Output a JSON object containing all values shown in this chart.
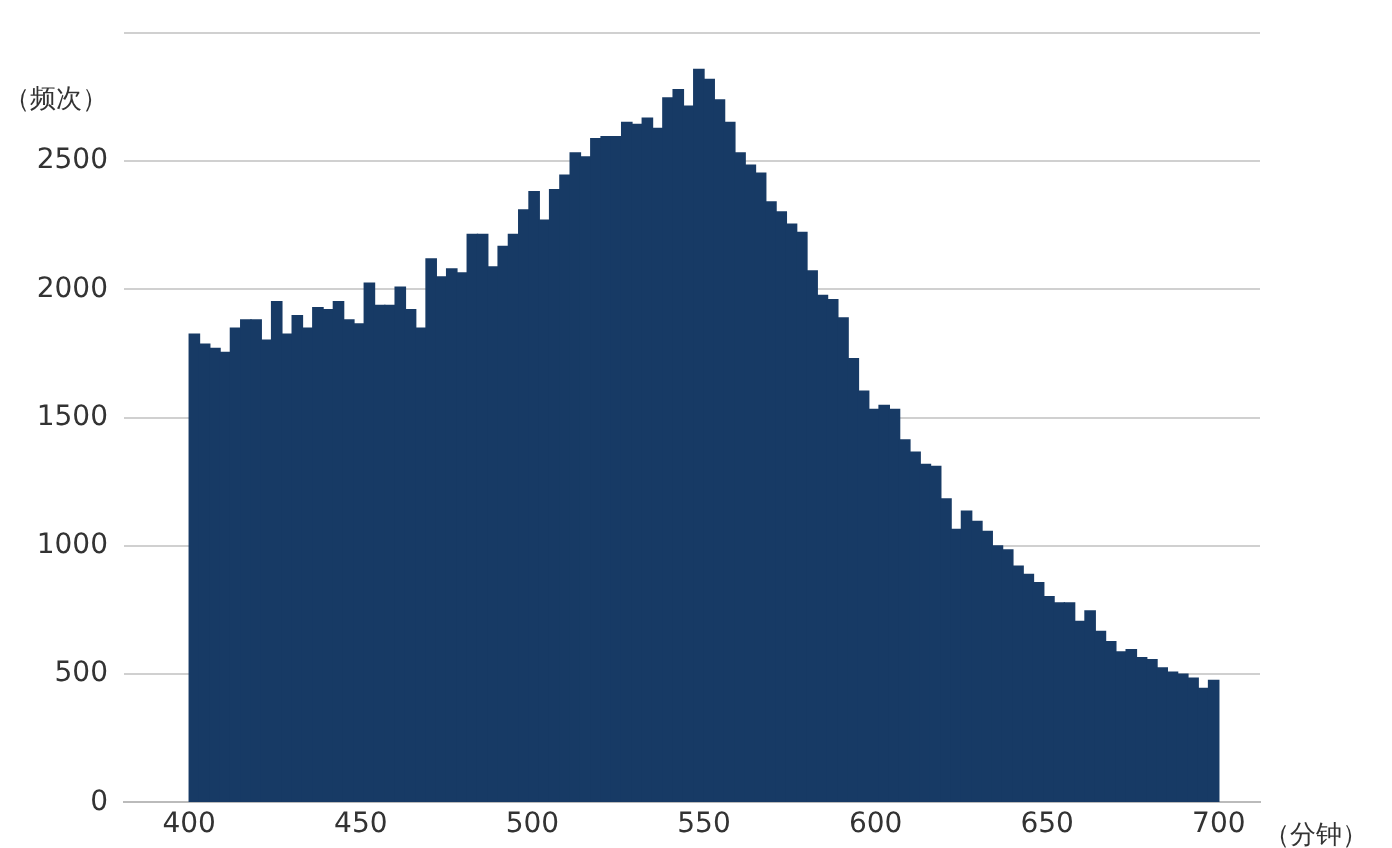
{
  "chart_data": {
    "type": "histogram",
    "ylabel": "（频次）",
    "xlabel": "（分钟）",
    "color": "#173a65",
    "bins": [
      400,
      403,
      406,
      409,
      412,
      415,
      418,
      421,
      424,
      427,
      430,
      433,
      436,
      439,
      442,
      445,
      448,
      451,
      454,
      457,
      460,
      463,
      466,
      469,
      472,
      475,
      478,
      481,
      484,
      487,
      490,
      493,
      496,
      499,
      502,
      505,
      508,
      511,
      514,
      517,
      520,
      523,
      526,
      529,
      532,
      535,
      538,
      541,
      544,
      547,
      550,
      553,
      556,
      559,
      562,
      565,
      568,
      571,
      574,
      577,
      580,
      583,
      586,
      589,
      592,
      595,
      598,
      601,
      604,
      607,
      610,
      613,
      616,
      619,
      622,
      625,
      628,
      631,
      634,
      637,
      640,
      643,
      646,
      649,
      652,
      655,
      658,
      661,
      664,
      667,
      670,
      673,
      676,
      679,
      682,
      685,
      688,
      691,
      694,
      697,
      700
    ],
    "values": [
      1825,
      1786,
      1770,
      1754,
      1849,
      1881,
      1881,
      1802,
      1952,
      1825,
      1897,
      1849,
      1929,
      1921,
      1952,
      1881,
      1865,
      2024,
      1937,
      1937,
      2008,
      1921,
      1849,
      2119,
      2048,
      2080,
      2064,
      2214,
      2214,
      2087,
      2167,
      2214,
      2310,
      2381,
      2270,
      2389,
      2445,
      2532,
      2516,
      2587,
      2595,
      2595,
      2651,
      2643,
      2667,
      2627,
      2746,
      2778,
      2714,
      2857,
      2818,
      2738,
      2651,
      2532,
      2484,
      2453,
      2341,
      2302,
      2254,
      2222,
      2072,
      1976,
      1960,
      1889,
      1730,
      1603,
      1532,
      1548,
      1532,
      1413,
      1365,
      1318,
      1310,
      1183,
      1064,
      1135,
      1095,
      1056,
      1000,
      984,
      921,
      889,
      857,
      802,
      778,
      778,
      706,
      746,
      667,
      627,
      587,
      595,
      564,
      556,
      524,
      508,
      500,
      484,
      444,
      476
    ],
    "xlim": [
      381,
      712
    ],
    "xticks": [
      400,
      450,
      500,
      550,
      600,
      650,
      700
    ],
    "ylim": [
      0,
      3000
    ],
    "yticks": [
      0,
      500,
      1000,
      1500,
      2000,
      2500,
      {
        "value": 3000,
        "label": null
      }
    ],
    "grid": "y",
    "legend": false
  }
}
